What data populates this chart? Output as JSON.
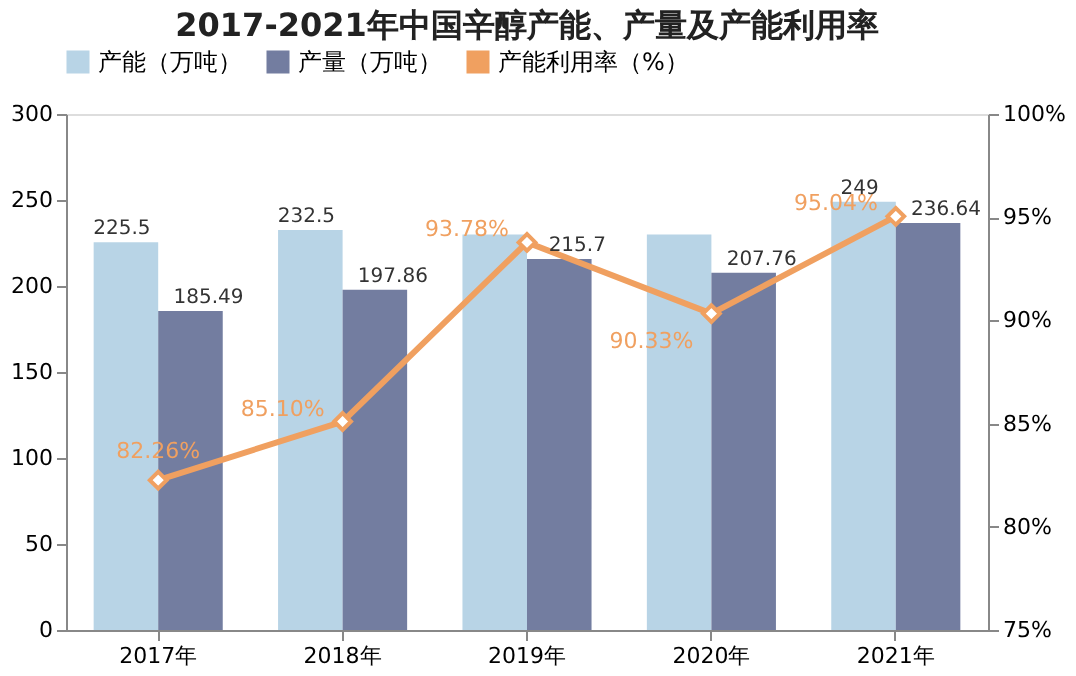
{
  "chart_data": {
    "type": "bar",
    "title": "2017-2021年中国辛醇产能、产量及产能利用率",
    "categories": [
      "2017年",
      "2018年",
      "2019年",
      "2020年",
      "2021年"
    ],
    "series": [
      {
        "name": "产能（万吨）",
        "color": "#b8d4e6",
        "values": [
          225.5,
          232.5,
          230,
          230,
          249
        ],
        "value_labels": [
          "225.5",
          "232.5",
          null,
          null,
          "249"
        ]
      },
      {
        "name": "产量（万吨）",
        "color": "#737da0",
        "values": [
          185.49,
          197.86,
          215.7,
          207.76,
          236.64
        ],
        "value_labels": [
          "185.49",
          "197.86",
          "215.7",
          "207.76",
          "236.64"
        ]
      },
      {
        "name": "产能利用率（%）",
        "type": "line",
        "axis": "y2",
        "color": "#f0a060",
        "marker": "diamond",
        "values": [
          82.26,
          85.1,
          93.78,
          90.33,
          95.04
        ],
        "value_labels": [
          "82.26%",
          "85.10%",
          "93.78%",
          "90.33%",
          "95.04%"
        ]
      }
    ],
    "ylim": [
      0,
      300
    ],
    "yticks": [
      0,
      50,
      100,
      150,
      200,
      250,
      300
    ],
    "y2lim": [
      75,
      100
    ],
    "y2ticks": [
      {
        "value": 75,
        "label": "75%"
      },
      {
        "value": 80,
        "label": "80%"
      },
      {
        "value": 85,
        "label": "85%"
      },
      {
        "value": 90,
        "label": "90%"
      },
      {
        "value": 95,
        "label": "95%"
      },
      {
        "value": 100,
        "label": "100%"
      }
    ],
    "legend": "top",
    "grid": false
  }
}
